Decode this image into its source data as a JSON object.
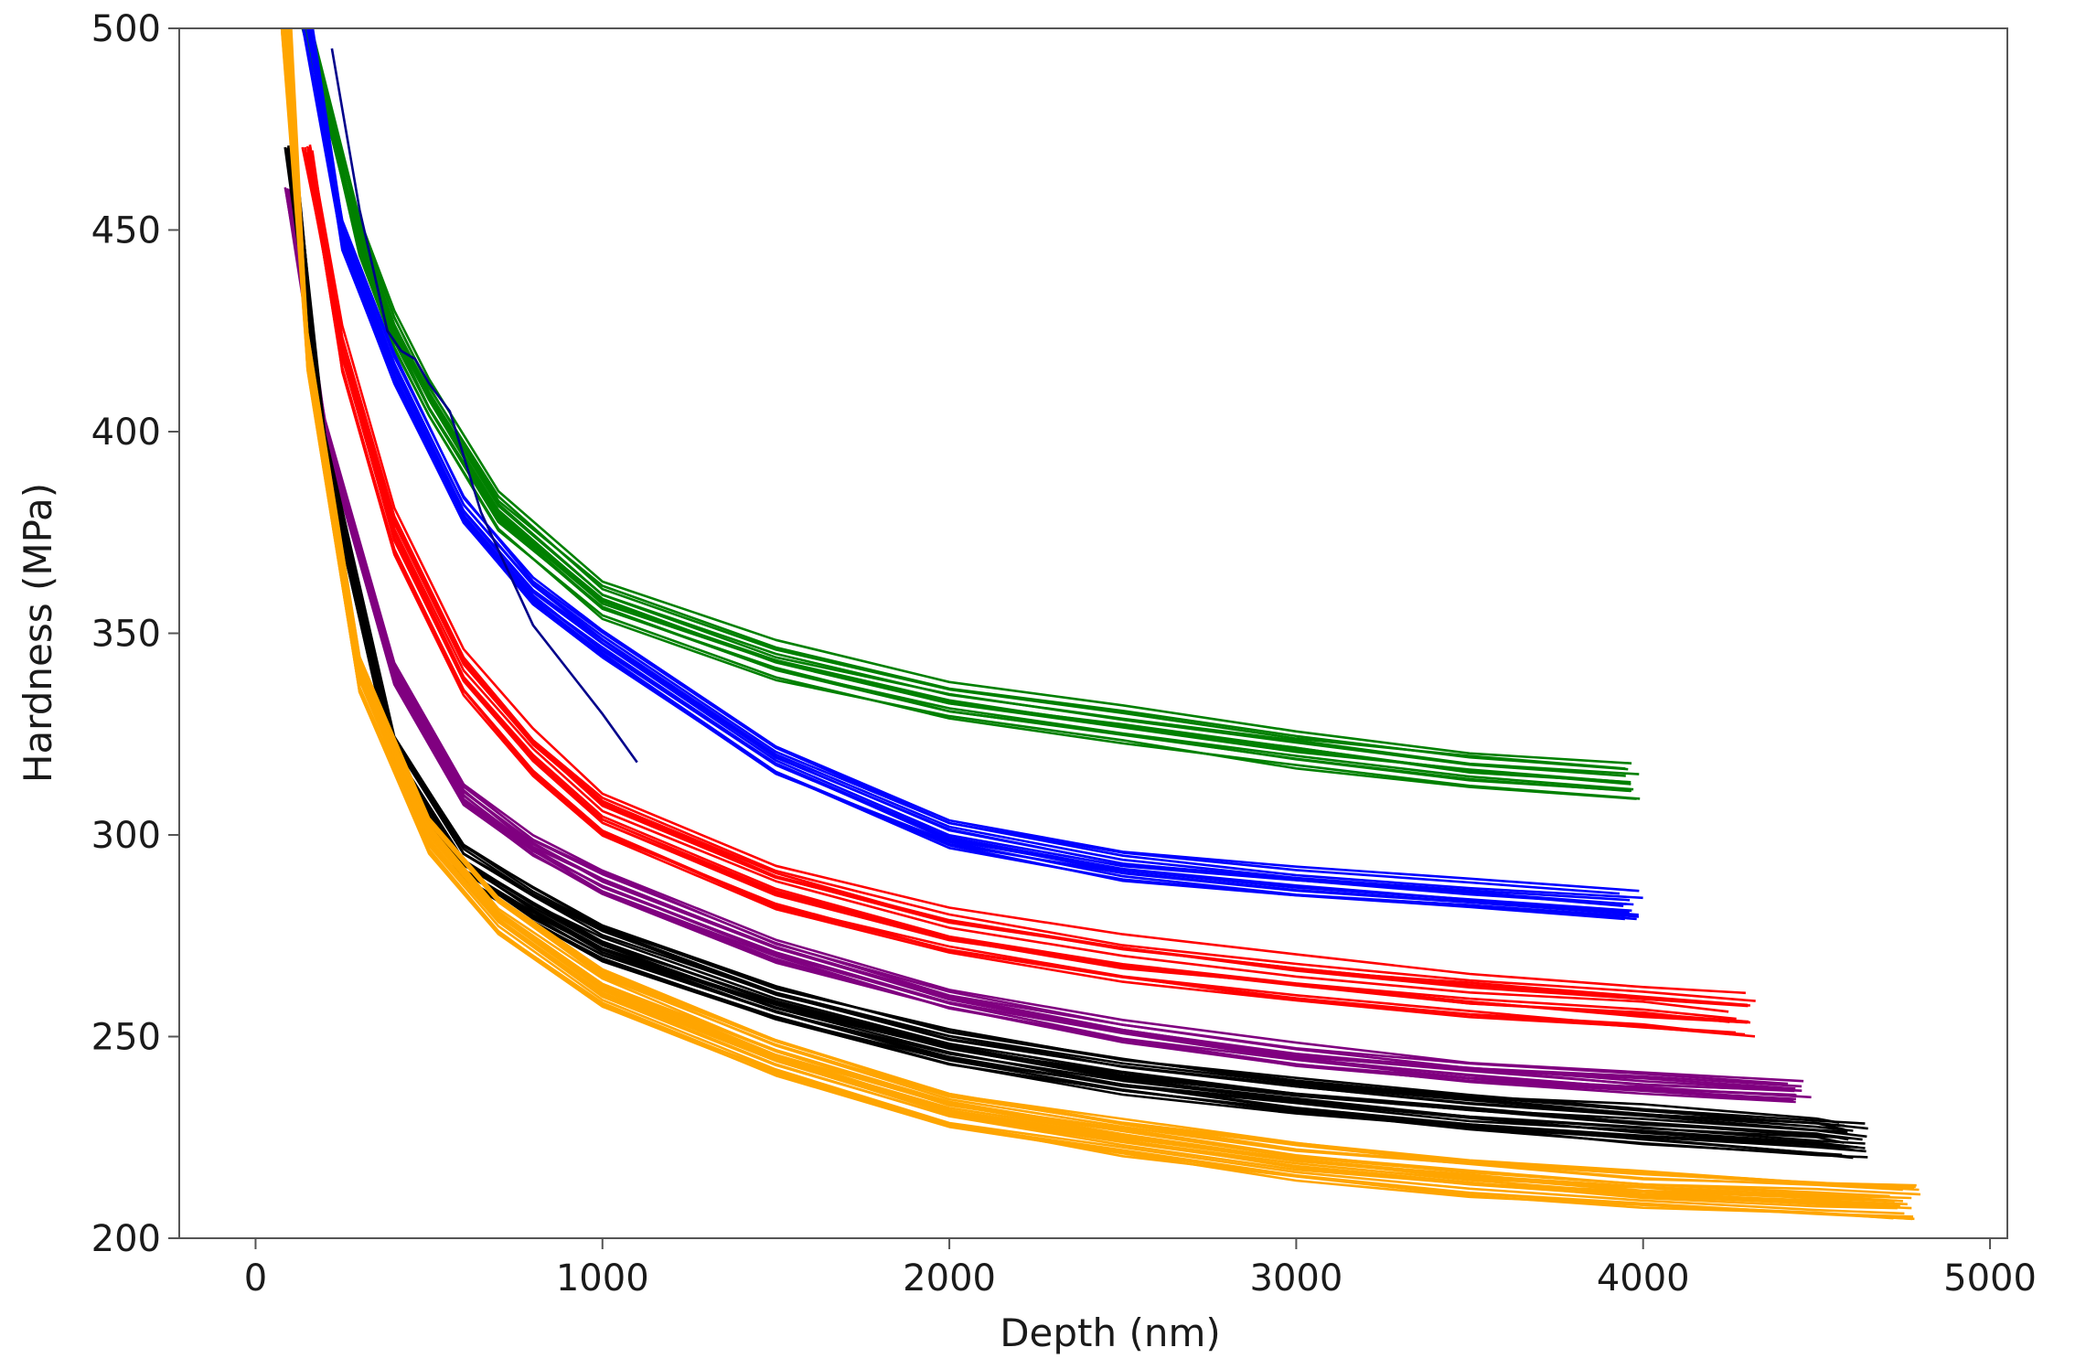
{
  "chart_data": {
    "type": "line",
    "title": "",
    "xlabel": "Depth (nm)",
    "ylabel": "Hardness (MPa)",
    "xlim": [
      -220,
      5050
    ],
    "ylim": [
      200,
      500
    ],
    "xticks": [
      0,
      1000,
      2000,
      3000,
      4000,
      5000
    ],
    "yticks": [
      200,
      250,
      300,
      350,
      400,
      450,
      500
    ],
    "grid": false,
    "legend": "none",
    "series": [
      {
        "name": "green",
        "color": "#008000",
        "count": 14,
        "spread": 4.0,
        "x": [
          150,
          300,
          400,
          500,
          700,
          1000,
          1500,
          2000,
          2500,
          3000,
          3500,
          4000
        ],
        "y": [
          500,
          448,
          425,
          408,
          380,
          358,
          343,
          333,
          327,
          321,
          316,
          313
        ]
      },
      {
        "name": "blue",
        "color": "#0000ff",
        "count": 14,
        "spread": 3.5,
        "x": [
          150,
          250,
          400,
          600,
          800,
          1000,
          1500,
          2000,
          2500,
          3000,
          3500,
          4000
        ],
        "y": [
          500,
          448,
          415,
          380,
          360,
          347,
          318,
          300,
          292,
          288,
          285,
          282
        ]
      },
      {
        "name": "red",
        "color": "#ff0000",
        "count": 16,
        "spread": 5.0,
        "x": [
          150,
          250,
          400,
          600,
          800,
          1000,
          1500,
          2000,
          2500,
          3000,
          3500,
          4000,
          4330
        ],
        "y": [
          470,
          420,
          375,
          340,
          320,
          305,
          287,
          276,
          269,
          264,
          260,
          257,
          255
        ]
      },
      {
        "name": "purple",
        "color": "#800080",
        "count": 14,
        "spread": 2.5,
        "x": [
          100,
          200,
          400,
          600,
          800,
          1000,
          1500,
          2000,
          2500,
          3000,
          3500,
          4000,
          4500
        ],
        "y": [
          460,
          400,
          340,
          310,
          297,
          288,
          271,
          259,
          251,
          245,
          241,
          238,
          236
        ]
      },
      {
        "name": "black",
        "color": "#000000",
        "count": 22,
        "spread": 4.5,
        "x": [
          100,
          200,
          400,
          600,
          800,
          1000,
          1500,
          2000,
          2500,
          3000,
          3500,
          4000,
          4500,
          4650
        ],
        "y": [
          470,
          395,
          320,
          293,
          282,
          273,
          258,
          247,
          240,
          235,
          231,
          228,
          225,
          224
        ]
      },
      {
        "name": "orange",
        "color": "#ffa500",
        "count": 24,
        "spread": 4.0,
        "x": [
          90,
          150,
          300,
          500,
          700,
          1000,
          1500,
          2000,
          2500,
          3000,
          3500,
          4000,
          4500,
          4800
        ],
        "y": [
          500,
          420,
          340,
          300,
          280,
          262,
          245,
          232,
          225,
          219,
          215,
          212,
          210,
          209
        ]
      }
    ],
    "outlier": {
      "name": "blue-outlier",
      "color": "#00008b",
      "x": [
        220,
        300,
        380,
        420,
        460,
        500,
        560,
        650,
        800,
        1000,
        1100
      ],
      "y": [
        495,
        455,
        425,
        420,
        418,
        412,
        405,
        380,
        352,
        330,
        318
      ]
    }
  }
}
